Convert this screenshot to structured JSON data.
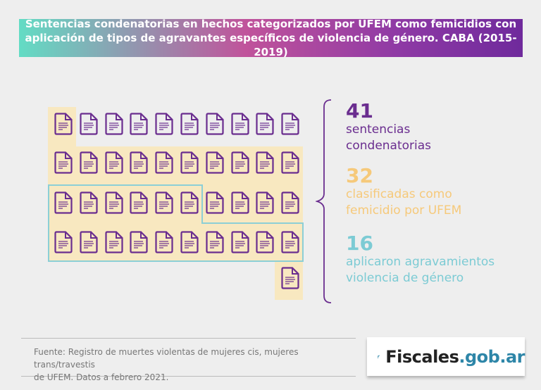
{
  "header": {
    "title_line1": "Sentencias condenatorias en hechos categorizados por UFEM como femicidios con",
    "title_line2": "aplicación de tipos de agravantes específicos de violencia de género. CABA (2015-2019)"
  },
  "grid": {
    "total_documents": 41,
    "columns": 10,
    "highlighted_femicidio": 32,
    "highlighted_agravantes": 16,
    "icon": "document-icon"
  },
  "stats": [
    {
      "value": "41",
      "label_line1": "sentencias",
      "label_line2": "condenatorias",
      "color": "#6a2d8f"
    },
    {
      "value": "32",
      "label_line1": "clasificadas como",
      "label_line2": "femicidio por UFEM",
      "color": "#f6c97a"
    },
    {
      "value": "16",
      "label_line1": "aplicaron agravamientos",
      "label_line2": "violencia de género",
      "color": "#7ccbd4"
    }
  ],
  "footer": {
    "source_line1": "Fuente: Registro de muertes violentas de mujeres cis, mujeres trans/travestis",
    "source_line2": "de UFEM. Datos a febrero 2021."
  },
  "logo": {
    "text_main": "Fiscales",
    "text_domain": ".gob.ar"
  },
  "colors": {
    "purple": "#6a2d8f",
    "yellow_bg": "#f8e8c0",
    "blue_outline": "#8ccfd6",
    "logo_blue": "#2e86a8"
  }
}
